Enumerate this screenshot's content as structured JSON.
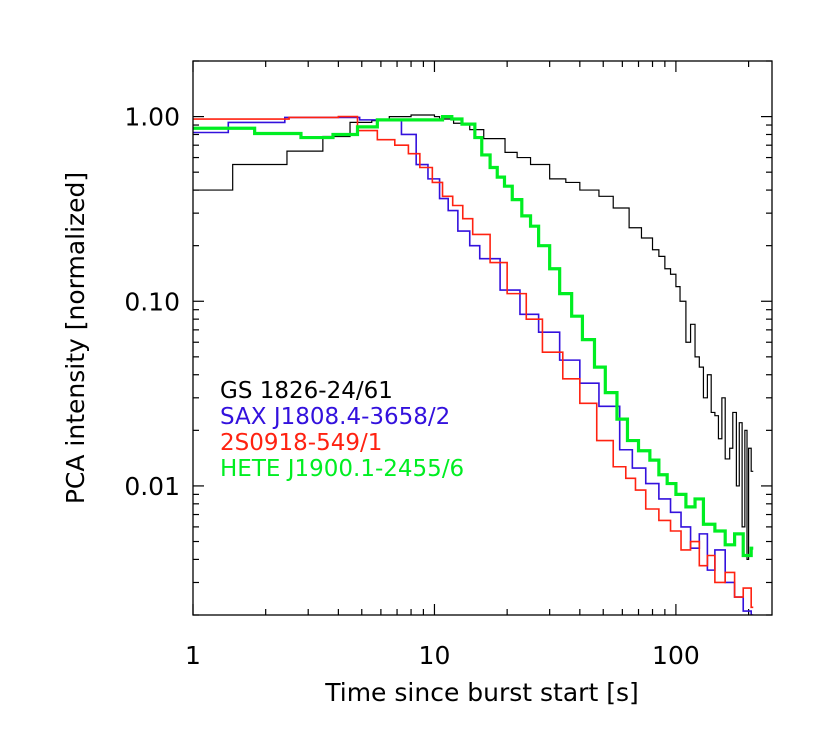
{
  "chart_data": {
    "type": "line",
    "title": "",
    "xlabel": "Time since burst start [s]",
    "ylabel": "PCA intensity [normalized]",
    "xscale": "log",
    "yscale": "log",
    "xlim": [
      1,
      250
    ],
    "ylim": [
      0.002,
      2
    ],
    "xticks": [
      {
        "value": 1,
        "label": "1"
      },
      {
        "value": 10,
        "label": "10"
      },
      {
        "value": 100,
        "label": "100"
      }
    ],
    "yticks": [
      {
        "value": 1,
        "label": "1.00"
      },
      {
        "value": 0.1,
        "label": "0.10"
      },
      {
        "value": 0.01,
        "label": "0.01"
      }
    ],
    "grid": false,
    "legend_placement": "left-middle",
    "series": [
      {
        "name": "GS 1826-24/61",
        "color": "#000000",
        "style": "step",
        "x": [
          1,
          1.46,
          2.45,
          3.45,
          4.47,
          5.5,
          6.5,
          8,
          10,
          10.5,
          12,
          14,
          16,
          19.6,
          22,
          25,
          30,
          35,
          40,
          48,
          55,
          64,
          72,
          80,
          85,
          90,
          95,
          100,
          104,
          110,
          115,
          120,
          125,
          130,
          135,
          140,
          145,
          150,
          155,
          160,
          167,
          172,
          178,
          183,
          188,
          193,
          197,
          200,
          205
        ],
        "y": [
          0.4,
          0.55,
          0.65,
          0.78,
          0.93,
          0.95,
          1.0,
          1.02,
          1.0,
          0.97,
          0.92,
          0.85,
          0.76,
          0.64,
          0.6,
          0.55,
          0.46,
          0.44,
          0.4,
          0.37,
          0.32,
          0.25,
          0.22,
          0.19,
          0.175,
          0.15,
          0.14,
          0.12,
          0.1,
          0.06,
          0.075,
          0.05,
          0.044,
          0.03,
          0.04,
          0.025,
          0.024,
          0.018,
          0.03,
          0.014,
          0.016,
          0.025,
          0.01,
          0.022,
          0.006,
          0.02,
          0.004,
          0.016,
          0.012
        ]
      },
      {
        "name": "SAX J1808.4-3658/2",
        "color": "#3311dd",
        "style": "step",
        "x": [
          1,
          1.4,
          2.4,
          4.9,
          7.3,
          8.4,
          9.4,
          10.5,
          11.4,
          12.5,
          14,
          15.4,
          18.7,
          22.6,
          27,
          33,
          40,
          48,
          58.5,
          66,
          75,
          85,
          95,
          105,
          115,
          125,
          135,
          145,
          160,
          175,
          190,
          205
        ],
        "y": [
          0.82,
          0.93,
          0.99,
          0.96,
          0.8,
          0.55,
          0.46,
          0.36,
          0.31,
          0.24,
          0.2,
          0.17,
          0.115,
          0.085,
          0.068,
          0.048,
          0.036,
          0.027,
          0.0157,
          0.0125,
          0.0103,
          0.0085,
          0.0072,
          0.006,
          0.0046,
          0.0055,
          0.0035,
          0.0045,
          0.003,
          0.0025,
          0.0021,
          0.002
        ]
      },
      {
        "name": "2S0918-549/1",
        "color": "#ff2211",
        "style": "step",
        "x": [
          1,
          2.5,
          4.0,
          4.8,
          5.8,
          6.85,
          7.8,
          8.7,
          9.8,
          10.8,
          11.9,
          13.1,
          14.4,
          17,
          20,
          24,
          28,
          34,
          40,
          47,
          55,
          62,
          68,
          75,
          85,
          95,
          105,
          115,
          125,
          135,
          145,
          160,
          175,
          190,
          205
        ],
        "y": [
          0.97,
          0.99,
          1.0,
          0.84,
          0.75,
          0.7,
          0.63,
          0.53,
          0.44,
          0.37,
          0.33,
          0.28,
          0.23,
          0.162,
          0.11,
          0.08,
          0.053,
          0.038,
          0.028,
          0.0176,
          0.0127,
          0.011,
          0.0095,
          0.0075,
          0.0065,
          0.0057,
          0.0045,
          0.005,
          0.0037,
          0.0042,
          0.003,
          0.0034,
          0.0025,
          0.0028,
          0.0022
        ]
      },
      {
        "name": "HETE J1900.1-2455/6",
        "color": "#00ee22",
        "style": "step",
        "x": [
          1,
          1.8,
          2.8,
          3.8,
          4.8,
          5.8,
          10.8,
          11.8,
          13,
          14.7,
          15.7,
          17,
          18.2,
          19.5,
          21,
          23,
          25,
          27,
          30,
          33,
          37,
          41,
          46,
          51,
          57,
          63,
          70,
          78,
          85,
          92,
          100,
          110,
          120,
          130,
          145,
          160,
          175,
          190,
          205
        ],
        "y": [
          0.865,
          0.81,
          0.77,
          0.8,
          0.88,
          0.96,
          1.0,
          0.97,
          0.91,
          0.77,
          0.62,
          0.53,
          0.47,
          0.42,
          0.355,
          0.29,
          0.255,
          0.2,
          0.15,
          0.11,
          0.083,
          0.062,
          0.044,
          0.032,
          0.023,
          0.0176,
          0.0155,
          0.0138,
          0.0115,
          0.0103,
          0.009,
          0.0077,
          0.0085,
          0.0062,
          0.0057,
          0.0048,
          0.0055,
          0.0042,
          0.0046
        ]
      }
    ]
  }
}
